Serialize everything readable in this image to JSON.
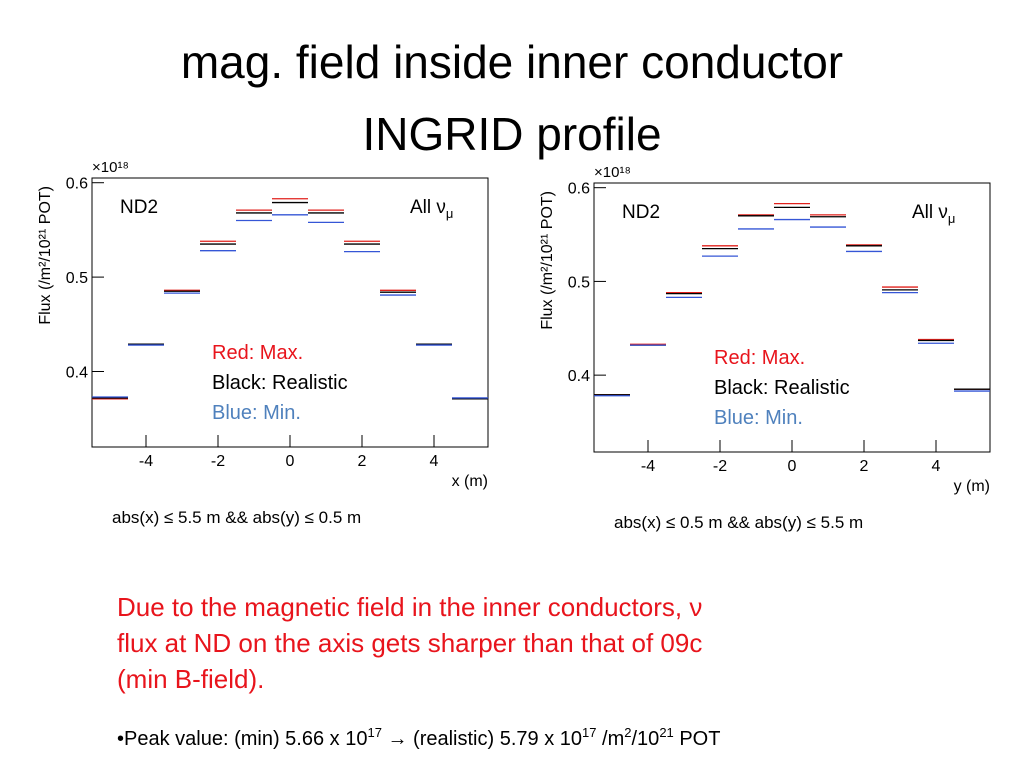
{
  "title": [
    "mag. field inside inner conductor",
    "INGRID profile"
  ],
  "chart_data": [
    {
      "type": "histogram",
      "region": "ND2",
      "beam": {
        "text": "All ν",
        "sub": "μ"
      },
      "x_label": "x (m)",
      "y_label": "Flux (/m²/10²¹ POT)",
      "y_multiplier": "×10¹⁸",
      "caption": "abs(x) ≤ 5.5 m && abs(y) ≤ 0.5 m",
      "bins": [
        -5.5,
        -4.5,
        -3.5,
        -2.5,
        -1.5,
        -0.5,
        0.5,
        1.5,
        2.5,
        3.5,
        4.5,
        5.5
      ],
      "xlim": [
        -5.5,
        5.5
      ],
      "xticks": [
        -4,
        -2,
        0,
        2,
        4
      ],
      "ylim": [
        0.32,
        0.605
      ],
      "yticks": [
        0.4,
        0.5,
        0.6
      ],
      "series": [
        {
          "name": "Red: Max.",
          "color": "#e0201c",
          "values": [
            0.371,
            0.429,
            0.486,
            0.538,
            0.571,
            0.583,
            0.571,
            0.538,
            0.486,
            0.429,
            0.371
          ]
        },
        {
          "name": "Black: Realistic",
          "color": "#000000",
          "values": [
            0.372,
            0.429,
            0.485,
            0.535,
            0.568,
            0.579,
            0.568,
            0.535,
            0.484,
            0.429,
            0.371
          ]
        },
        {
          "name": "Blue: Min.",
          "color": "#3556d6",
          "values": [
            0.373,
            0.428,
            0.483,
            0.528,
            0.56,
            0.566,
            0.558,
            0.527,
            0.481,
            0.428,
            0.372
          ]
        }
      ]
    },
    {
      "type": "histogram",
      "region": "ND2",
      "beam": {
        "text": "All ν",
        "sub": "μ"
      },
      "x_label": "y (m)",
      "y_label": "Flux (/m²/10²¹ POT)",
      "y_multiplier": "×10¹⁸",
      "caption": "abs(x) ≤ 0.5 m && abs(y) ≤ 5.5 m",
      "bins": [
        -5.5,
        -4.5,
        -3.5,
        -2.5,
        -1.5,
        -0.5,
        0.5,
        1.5,
        2.5,
        3.5,
        4.5,
        5.5
      ],
      "xlim": [
        -5.5,
        5.5
      ],
      "xticks": [
        -4,
        -2,
        0,
        2,
        4
      ],
      "ylim": [
        0.318,
        0.605
      ],
      "yticks": [
        0.4,
        0.5,
        0.6
      ],
      "series": [
        {
          "name": "Red: Max.",
          "color": "#e0201c",
          "values": [
            0.379,
            0.433,
            0.488,
            0.538,
            0.571,
            0.583,
            0.571,
            0.539,
            0.494,
            0.438,
            0.385
          ]
        },
        {
          "name": "Black: Realistic",
          "color": "#000000",
          "values": [
            0.379,
            0.432,
            0.487,
            0.535,
            0.57,
            0.579,
            0.569,
            0.538,
            0.491,
            0.437,
            0.385
          ]
        },
        {
          "name": "Blue: Min.",
          "color": "#3556d6",
          "values": [
            0.378,
            0.432,
            0.483,
            0.527,
            0.556,
            0.566,
            0.558,
            0.532,
            0.488,
            0.434,
            0.383
          ]
        }
      ]
    }
  ],
  "note": [
    "Due to the magnetic field in the inner conductors, ν",
    "flux at ND on the axis gets sharper than that of 09c",
    "(min B-field)."
  ],
  "bullet": [
    {
      "text": "•Peak value: (min) 5.66 x 10"
    },
    {
      "sup": "17"
    },
    {
      "text": " → (realistic) 5.79 x 10"
    },
    {
      "sup": "17"
    },
    {
      "text": " /m"
    },
    {
      "sup": "2"
    },
    {
      "text": "/10"
    },
    {
      "sup": "21"
    },
    {
      "text": " POT"
    }
  ]
}
